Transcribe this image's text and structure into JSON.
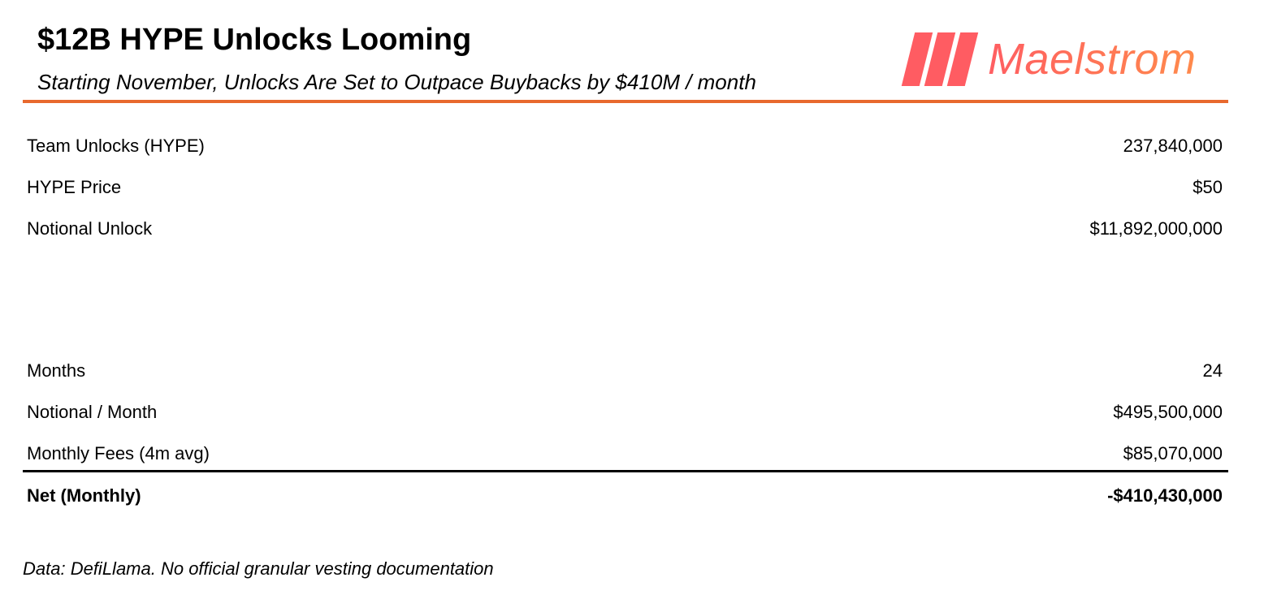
{
  "header": {
    "title": "$12B HYPE Unlocks Looming",
    "subtitle": "Starting November, Unlocks Are Set to Outpace Buybacks by $410M / month",
    "logo_text": "Maelstrom",
    "accent_color": "#e8692e",
    "logo_color": "#ff5e62"
  },
  "table": {
    "group1": [
      {
        "label": "Team Unlocks (HYPE)",
        "value": "237,840,000"
      },
      {
        "label": "HYPE Price",
        "value": "$50"
      },
      {
        "label": "Notional Unlock",
        "value": "$11,892,000,000"
      }
    ],
    "group2": [
      {
        "label": "Months",
        "value": "24"
      },
      {
        "label": "Notional / Month",
        "value": "$495,500,000"
      },
      {
        "label": "Monthly Fees (4m avg)",
        "value": "$85,070,000"
      }
    ],
    "total": {
      "label": "Net (Monthly)",
      "value": "-$410,430,000"
    }
  },
  "footer": {
    "note": "Data: DefiLlama. No official granular vesting documentation"
  }
}
